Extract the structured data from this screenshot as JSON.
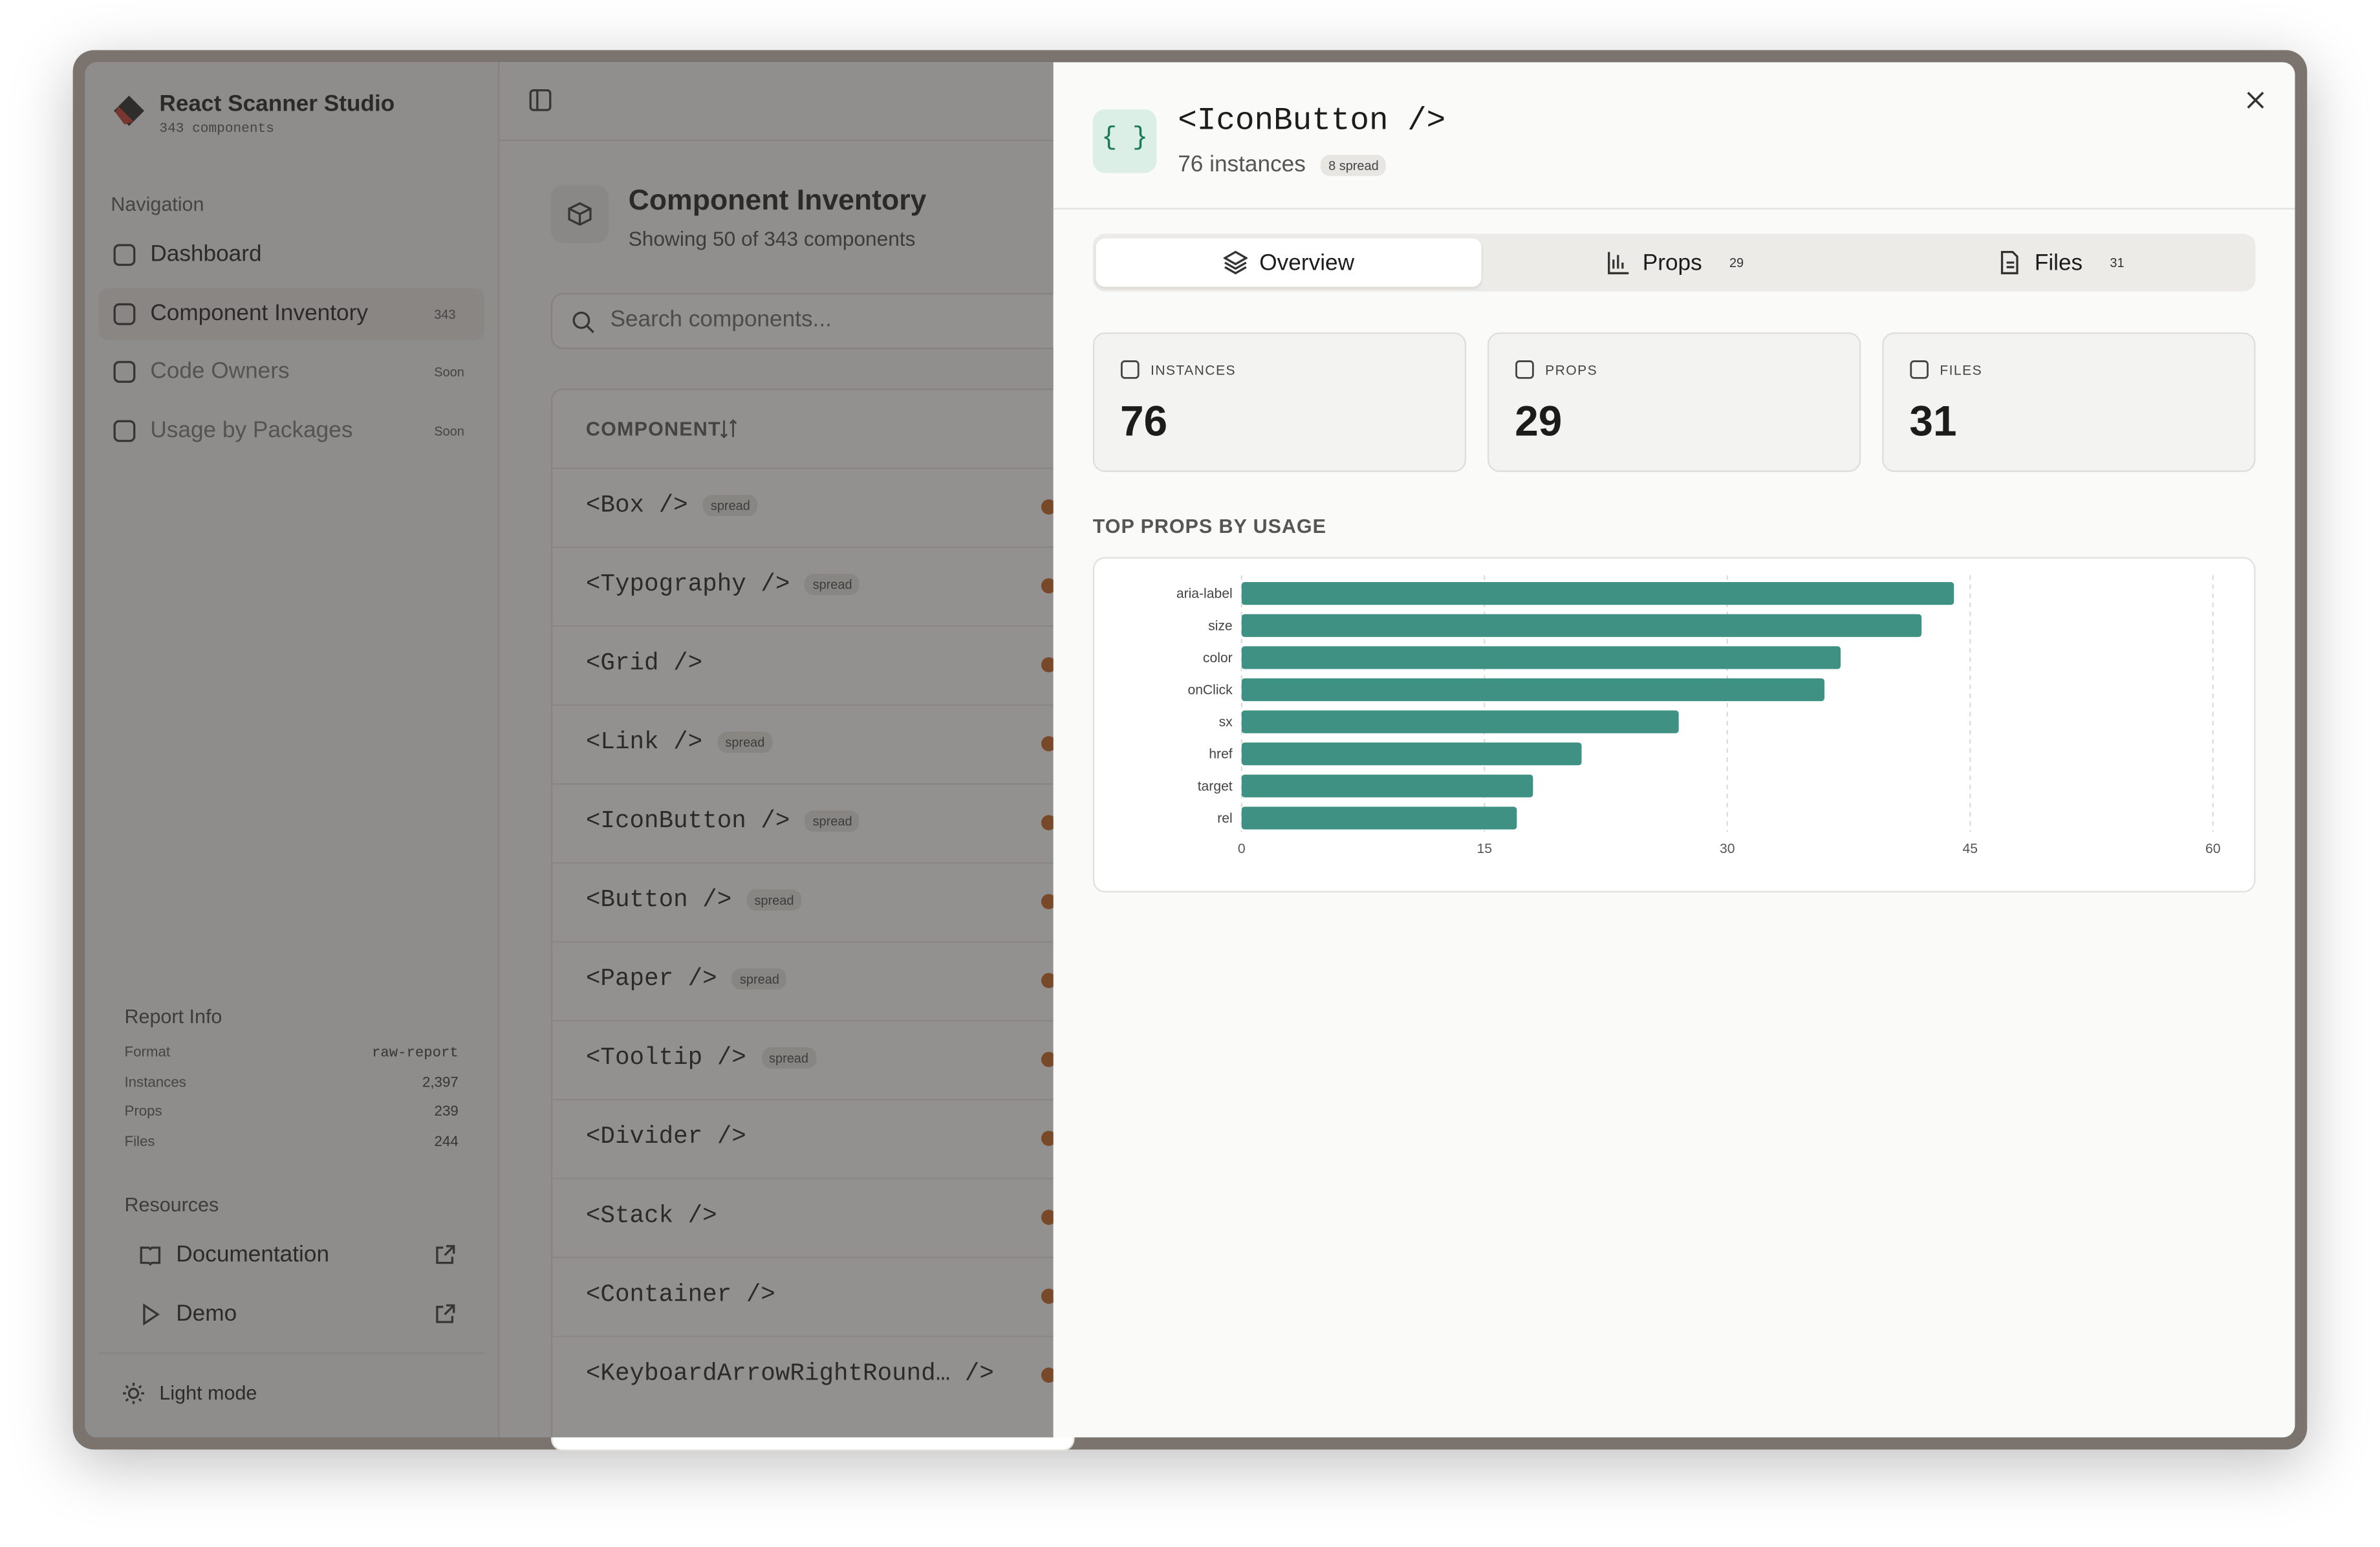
{
  "sidebar": {
    "app_name": "React Scanner Studio",
    "app_subtitle": "343 components",
    "nav_heading": "Navigation",
    "nav": [
      {
        "label": "Dashboard"
      },
      {
        "label": "Component Inventory",
        "badge": "343"
      },
      {
        "label": "Code Owners",
        "badge": "Soon"
      },
      {
        "label": "Usage by Packages",
        "badge": "Soon"
      }
    ],
    "report_heading": "Report Info",
    "report": [
      [
        "Format",
        "raw-report"
      ],
      [
        "Instances",
        "2,397"
      ],
      [
        "Props",
        "239"
      ],
      [
        "Files",
        "244"
      ]
    ],
    "resources_heading": "Resources",
    "resources": [
      "Documentation",
      "Demo"
    ],
    "theme_toggle": "Light mode"
  },
  "inventory": {
    "title": "Component Inventory",
    "subtitle": "Showing 50 of 343 components",
    "search_placeholder": "Search components...",
    "column": "COMPONENT",
    "rows": [
      {
        "name": "<Box />",
        "badge": "spread"
      },
      {
        "name": "<Typography />",
        "badge": "spread"
      },
      {
        "name": "<Grid />"
      },
      {
        "name": "<Link />",
        "badge": "spread"
      },
      {
        "name": "<IconButton />",
        "badge": "spread"
      },
      {
        "name": "<Button />",
        "badge": "spread"
      },
      {
        "name": "<Paper />",
        "badge": "spread"
      },
      {
        "name": "<Tooltip />",
        "badge": "spread"
      },
      {
        "name": "<Divider />"
      },
      {
        "name": "<Stack />"
      },
      {
        "name": "<Container />"
      },
      {
        "name": "<KeyboardArrowRightRound… />"
      }
    ]
  },
  "drawer": {
    "icon": "{ }",
    "title": "<IconButton />",
    "subtitle": "76 instances",
    "badge": "8 spread",
    "tabs": [
      {
        "label": "Overview"
      },
      {
        "label": "Props",
        "count": "29"
      },
      {
        "label": "Files",
        "count": "31"
      }
    ],
    "stats": [
      {
        "label": "INSTANCES",
        "value": "76"
      },
      {
        "label": "PROPS",
        "value": "29"
      },
      {
        "label": "FILES",
        "value": "31"
      }
    ],
    "section": "TOP PROPS BY USAGE"
  },
  "chart_data": {
    "type": "bar",
    "orientation": "horizontal",
    "categories": [
      "aria-label",
      "size",
      "color",
      "onClick",
      "sx",
      "href",
      "target",
      "rel"
    ],
    "values": [
      44,
      42,
      37,
      36,
      27,
      21,
      18,
      17
    ],
    "color": "#3f9183",
    "xlim": [
      0,
      60
    ],
    "xticks": [
      0,
      15,
      30,
      45,
      60
    ],
    "grid": true
  }
}
